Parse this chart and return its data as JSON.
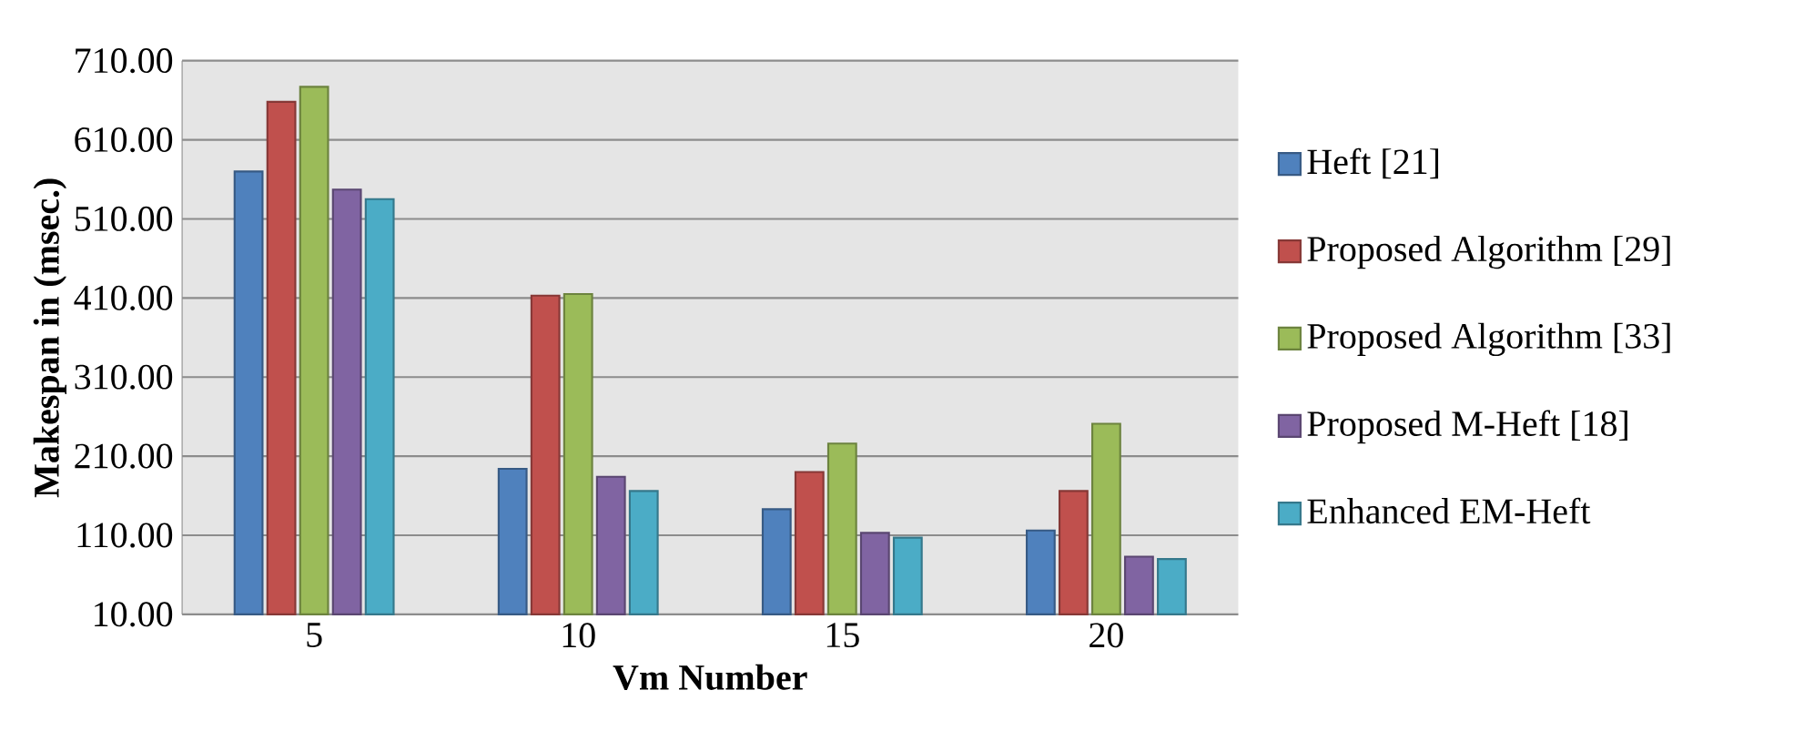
{
  "chart_data": {
    "type": "bar",
    "xlabel": "Vm Number",
    "ylabel": "Makespan in (msec.)",
    "categories": [
      "5",
      "10",
      "15",
      "20"
    ],
    "series": [
      {
        "name": "Heft [21]",
        "color": "#4f81bd",
        "values": [
          570,
          194,
          143,
          116
        ]
      },
      {
        "name": "Proposed Algorithm [29]",
        "color": "#c0504d",
        "values": [
          658,
          413,
          190,
          166
        ]
      },
      {
        "name": "Proposed Algorithm [33]",
        "color": "#9bbb59",
        "values": [
          677,
          415,
          226,
          251
        ]
      },
      {
        "name": "Proposed M-Heft [18]",
        "color": "#8064a2",
        "values": [
          547,
          184,
          113,
          83
        ]
      },
      {
        "name": "Enhanced EM-Heft",
        "color": "#4bacc6",
        "values": [
          535,
          166,
          107,
          80
        ]
      }
    ],
    "ylim": [
      10,
      710
    ],
    "yticks": [
      {
        "value": 10,
        "label": "10.00"
      },
      {
        "value": 110,
        "label": "110.00"
      },
      {
        "value": 210,
        "label": "210.00"
      },
      {
        "value": 310,
        "label": "310.00"
      },
      {
        "value": 410,
        "label": "410.00"
      },
      {
        "value": 510,
        "label": "510.00"
      },
      {
        "value": 610,
        "label": "610.00"
      },
      {
        "value": 710,
        "label": "710.00"
      }
    ],
    "grid": "y",
    "legend": "right"
  }
}
